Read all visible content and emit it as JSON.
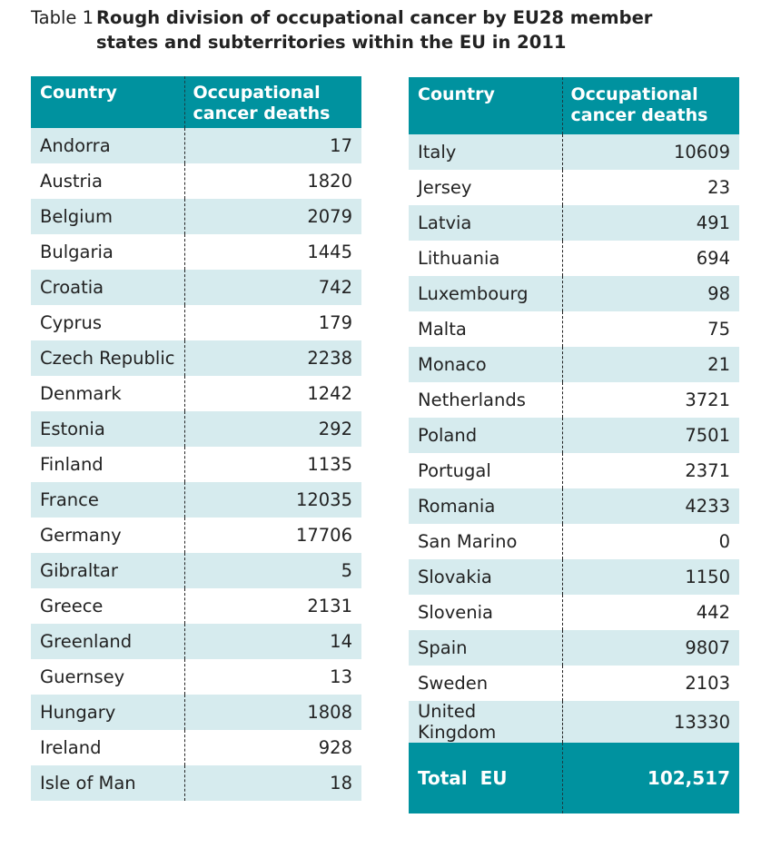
{
  "caption": {
    "label": "Table 1",
    "text": "Rough division of occupational cancer by EU28 member states and subterritories within the EU in 2011"
  },
  "headers": {
    "country": "Country",
    "deaths": "Occupational cancer deaths"
  },
  "left_rows": [
    {
      "country": "Andorra",
      "deaths": "17"
    },
    {
      "country": "Austria",
      "deaths": "1820"
    },
    {
      "country": "Belgium",
      "deaths": "2079"
    },
    {
      "country": "Bulgaria",
      "deaths": "1445"
    },
    {
      "country": "Croatia",
      "deaths": "742"
    },
    {
      "country": "Cyprus",
      "deaths": "179"
    },
    {
      "country": "Czech Republic",
      "deaths": "2238"
    },
    {
      "country": "Denmark",
      "deaths": "1242"
    },
    {
      "country": "Estonia",
      "deaths": "292"
    },
    {
      "country": "Finland",
      "deaths": "1135"
    },
    {
      "country": "France",
      "deaths": "12035"
    },
    {
      "country": "Germany",
      "deaths": "17706"
    },
    {
      "country": "Gibraltar",
      "deaths": "5"
    },
    {
      "country": "Greece",
      "deaths": "2131"
    },
    {
      "country": "Greenland",
      "deaths": "14"
    },
    {
      "country": "Guernsey",
      "deaths": "13"
    },
    {
      "country": "Hungary",
      "deaths": "1808"
    },
    {
      "country": "Ireland",
      "deaths": "928"
    },
    {
      "country": "Isle of Man",
      "deaths": "18"
    }
  ],
  "right_rows": [
    {
      "country": "Italy",
      "deaths": "10609"
    },
    {
      "country": "Jersey",
      "deaths": "23"
    },
    {
      "country": "Latvia",
      "deaths": "491"
    },
    {
      "country": "Lithuania",
      "deaths": "694"
    },
    {
      "country": "Luxembourg",
      "deaths": "98"
    },
    {
      "country": "Malta",
      "deaths": "75"
    },
    {
      "country": "Monaco",
      "deaths": "21"
    },
    {
      "country": "Netherlands",
      "deaths": "3721"
    },
    {
      "country": "Poland",
      "deaths": "7501"
    },
    {
      "country": "Portugal",
      "deaths": "2371"
    },
    {
      "country": "Romania",
      "deaths": "4233"
    },
    {
      "country": "San Marino",
      "deaths": "0"
    },
    {
      "country": "Slovakia",
      "deaths": "1150"
    },
    {
      "country": "Slovenia",
      "deaths": "442"
    },
    {
      "country": "Spain",
      "deaths": "9807"
    },
    {
      "country": "Sweden",
      "deaths": "2103"
    },
    {
      "country": "United Kingdom",
      "deaths": "13330"
    }
  ],
  "total": {
    "label": "Total  EU",
    "value": "102,517"
  },
  "colors": {
    "header": "#00929f",
    "stripe": "#d6ebee"
  }
}
